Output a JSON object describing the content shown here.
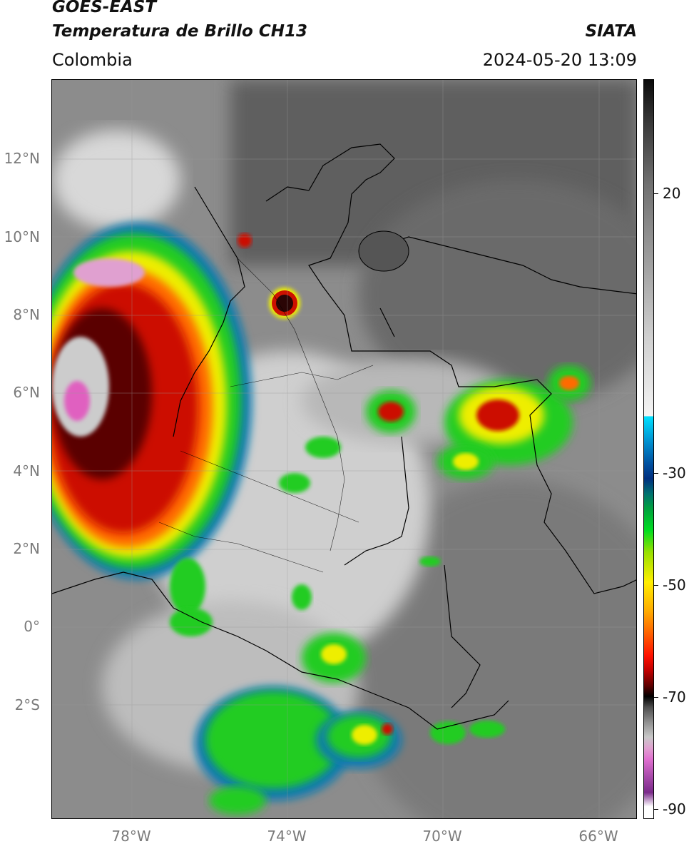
{
  "header": {
    "satellite": "GOES-EAST",
    "product": "Temperatura de Brillo CH13",
    "region": "Colombia",
    "agency": "SIATA",
    "datetime": "2024-05-20 13:09"
  },
  "axes": {
    "lat_labels": [
      "12°N",
      "10°N",
      "8°N",
      "6°N",
      "4°N",
      "2°N",
      "0°",
      "2°S"
    ],
    "lon_labels": [
      "78°W",
      "74°W",
      "70°W",
      "66°W"
    ]
  },
  "colorbar": {
    "tick_labels": [
      "20",
      "-30",
      "-50",
      "-70",
      "-90"
    ]
  },
  "colors": {
    "cloud_green": "#22cc22",
    "cloud_yellow": "#eeee00",
    "cloud_red": "#cc1100",
    "cloud_dark": "#2a0505",
    "cloud_pink": "#e060c0",
    "ocean_grey": "#8a8a8a"
  }
}
